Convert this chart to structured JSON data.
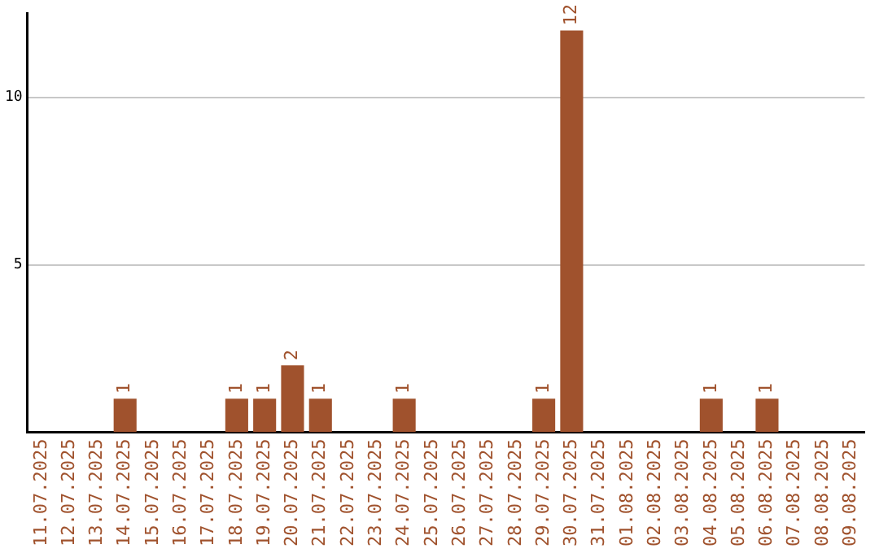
{
  "chart_data": {
    "type": "bar",
    "categories": [
      "11.07.2025",
      "12.07.2025",
      "13.07.2025",
      "14.07.2025",
      "15.07.2025",
      "16.07.2025",
      "17.07.2025",
      "18.07.2025",
      "19.07.2025",
      "20.07.2025",
      "21.07.2025",
      "22.07.2025",
      "23.07.2025",
      "24.07.2025",
      "25.07.2025",
      "26.07.2025",
      "27.07.2025",
      "28.07.2025",
      "29.07.2025",
      "30.07.2025",
      "31.07.2025",
      "01.08.2025",
      "02.08.2025",
      "03.08.2025",
      "04.08.2025",
      "05.08.2025",
      "06.08.2025",
      "07.08.2025",
      "08.08.2025",
      "09.08.2025"
    ],
    "values": [
      0,
      0,
      0,
      1,
      0,
      0,
      0,
      1,
      1,
      2,
      1,
      0,
      0,
      1,
      0,
      0,
      0,
      0,
      1,
      12,
      0,
      0,
      0,
      0,
      1,
      0,
      1,
      0,
      0,
      0
    ],
    "value_labels": [
      null,
      null,
      null,
      "1",
      null,
      null,
      null,
      "1",
      "1",
      "2",
      "1",
      null,
      null,
      "1",
      null,
      null,
      null,
      null,
      "1",
      "12",
      null,
      null,
      null,
      null,
      "1",
      null,
      "1",
      null,
      null,
      null
    ],
    "color": "#a0522d",
    "ylim": [
      0,
      12.5
    ],
    "yticks": [
      5,
      10
    ],
    "grid": "y",
    "legend": false
  }
}
